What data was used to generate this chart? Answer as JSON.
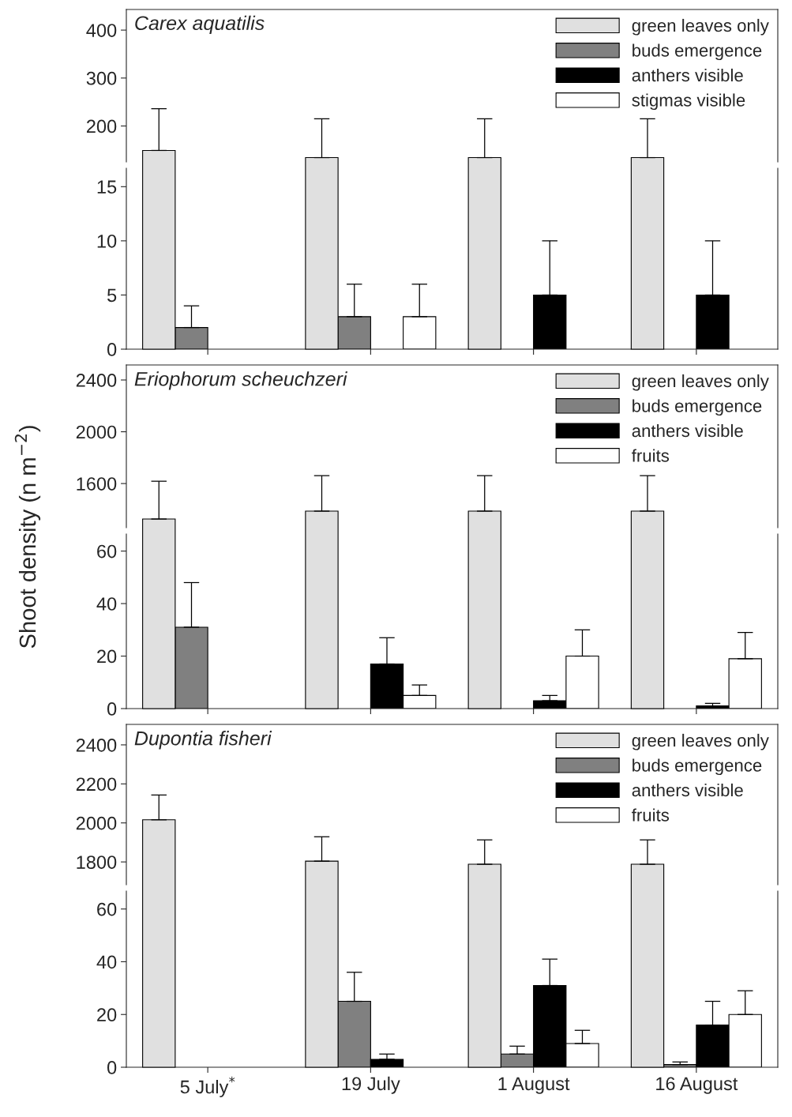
{
  "chart_data": [
    {
      "type": "bar",
      "title": "Carex aquatilis",
      "categories": [
        null,
        null,
        null,
        null
      ],
      "ylim": [
        125,
        443
      ],
      "yticks": [
        200,
        300,
        400
      ],
      "tick_labels": "y",
      "legend": "top right",
      "series": [
        {
          "name": "green leaves only",
          "color": "#e0e0e0",
          "values": [
            149,
            134,
            134,
            134
          ],
          "errors": [
            [
              149,
              236
            ],
            [
              134,
              215
            ],
            [
              134,
              215
            ],
            [
              134,
              215
            ]
          ]
        },
        {
          "name": "buds emergence",
          "color": "#808080",
          "values": [
            null,
            null,
            null,
            null
          ]
        },
        {
          "name": "anthers visible",
          "color": "#000000",
          "values": [
            null,
            null,
            null,
            null
          ]
        },
        {
          "name": "stigmas visible",
          "color": "#ffffff",
          "values": [
            null,
            null,
            null,
            null
          ]
        }
      ]
    },
    {
      "type": "bar",
      "categories": [
        null,
        null,
        null,
        null
      ],
      "ylim": [
        0,
        16.7
      ],
      "yticks": [
        0,
        5,
        10,
        15
      ],
      "tick_labels": "y",
      "series": [
        {
          "values": [
            null,
            null,
            null,
            null
          ]
        },
        {
          "color": "#808080",
          "values": [
            2,
            3,
            null,
            null
          ],
          "errors": [
            [
              2,
              4
            ],
            [
              3,
              6
            ],
            null,
            null
          ]
        },
        {
          "color": "#000000",
          "values": [
            null,
            null,
            5,
            5
          ],
          "errors": [
            null,
            null,
            [
              5,
              10
            ],
            [
              5,
              10
            ]
          ]
        },
        {
          "color": "#ffffff",
          "values": [
            null,
            3,
            null,
            null
          ],
          "errors": [
            null,
            [
              3,
              6
            ],
            null,
            null
          ]
        }
      ]
    },
    {
      "type": "bar",
      "title": "Eriophorum scheuchzeri",
      "ylabel": "Shoot density (n m$^{−2}$)",
      "categories": [
        null,
        null,
        null,
        null
      ],
      "ylim": [
        1259,
        2516
      ],
      "yticks": [
        1600,
        2000,
        2400
      ],
      "tick_labels": "y",
      "legend": "top right",
      "series": [
        {
          "name": "green leaves only",
          "color": "#e0e0e0",
          "values": [
            1326,
            1387,
            1387,
            1387
          ],
          "errors": [
            [
              1326,
              1618
            ],
            [
              1387,
              1661
            ],
            [
              1387,
              1661
            ],
            [
              1387,
              1661
            ]
          ]
        },
        {
          "name": "buds emergence",
          "color": "#808080",
          "values": [
            null,
            null,
            null,
            null
          ]
        },
        {
          "name": "anthers visible",
          "color": "#000000",
          "values": [
            null,
            null,
            null,
            null
          ]
        },
        {
          "name": "fruits",
          "color": "#ffffff",
          "values": [
            null,
            null,
            null,
            null
          ]
        }
      ]
    },
    {
      "type": "bar",
      "categories": [
        null,
        null,
        null,
        null
      ],
      "ylim": [
        0,
        66.5
      ],
      "yticks": [
        0,
        20,
        40,
        60
      ],
      "tick_labels": "y",
      "series": [
        {
          "values": [
            null,
            null,
            null,
            null
          ]
        },
        {
          "color": "#808080",
          "values": [
            31,
            null,
            null,
            null
          ],
          "errors": [
            [
              31,
              48
            ],
            null,
            null,
            null
          ]
        },
        {
          "color": "#000000",
          "values": [
            null,
            17,
            3,
            1
          ],
          "errors": [
            null,
            [
              17,
              27
            ],
            [
              3,
              5
            ],
            [
              1,
              2
            ]
          ]
        },
        {
          "color": "#ffffff",
          "values": [
            null,
            5,
            20,
            19
          ],
          "errors": [
            null,
            [
              5,
              9
            ],
            [
              20,
              30
            ],
            [
              19,
              29
            ]
          ]
        }
      ]
    },
    {
      "type": "bar",
      "title": "Dupontia fisheri",
      "categories": [
        null,
        null,
        null,
        null
      ],
      "ylim": [
        1683,
        2505
      ],
      "yticks": [
        1800,
        2000,
        2200,
        2400
      ],
      "tick_labels": "y",
      "legend": "top right",
      "series": [
        {
          "name": "green leaves only",
          "color": "#e0e0e0",
          "values": [
            2016,
            1804,
            1788,
            1788
          ],
          "errors": [
            [
              2016,
              2143
            ],
            [
              1804,
              1929
            ],
            [
              1788,
              1913
            ],
            [
              1788,
              1913
            ]
          ]
        },
        {
          "name": "buds emergence",
          "color": "#808080",
          "values": [
            null,
            null,
            null,
            null
          ]
        },
        {
          "name": "anthers visible",
          "color": "#000000",
          "values": [
            null,
            null,
            null,
            null
          ]
        },
        {
          "name": "fruits",
          "color": "#ffffff",
          "values": [
            null,
            null,
            null,
            null
          ]
        }
      ]
    },
    {
      "type": "bar",
      "categories": [
        "5 July$^{*}$",
        "19 July",
        "1 August",
        "16 August"
      ],
      "ylim": [
        0,
        66.8
      ],
      "yticks": [
        0,
        20,
        40,
        60
      ],
      "series": [
        {
          "values": [
            null,
            null,
            null,
            null
          ]
        },
        {
          "color": "#808080",
          "values": [
            null,
            25,
            5,
            1
          ],
          "errors": [
            null,
            [
              25,
              36
            ],
            [
              5,
              8
            ],
            [
              1,
              2
            ]
          ]
        },
        {
          "color": "#000000",
          "values": [
            null,
            3,
            31,
            16
          ],
          "errors": [
            null,
            [
              3,
              5
            ],
            [
              31,
              41
            ],
            [
              16,
              25
            ]
          ]
        },
        {
          "color": "#ffffff",
          "values": [
            null,
            null,
            9,
            20
          ],
          "errors": [
            null,
            null,
            [
              9,
              14
            ],
            [
              20,
              29
            ]
          ]
        }
      ]
    }
  ]
}
